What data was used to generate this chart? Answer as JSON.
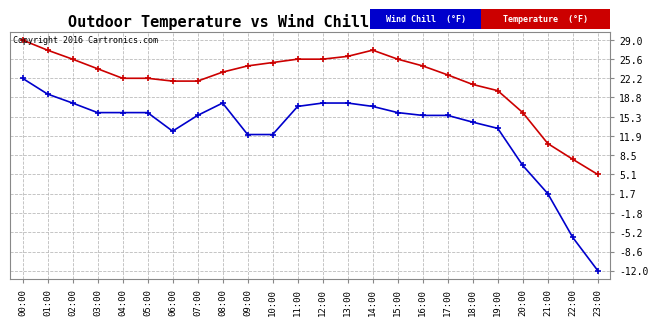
{
  "title": "Outdoor Temperature vs Wind Chill (24 Hours) 20160116",
  "copyright": "Copyright 2016 Cartronics.com",
  "x_labels": [
    "00:00",
    "01:00",
    "02:00",
    "03:00",
    "04:00",
    "05:00",
    "06:00",
    "07:00",
    "08:00",
    "09:00",
    "10:00",
    "11:00",
    "12:00",
    "13:00",
    "14:00",
    "15:00",
    "16:00",
    "17:00",
    "18:00",
    "19:00",
    "20:00",
    "21:00",
    "22:00",
    "23:00"
  ],
  "temperature": [
    29.0,
    27.2,
    25.6,
    23.9,
    22.2,
    22.2,
    21.7,
    21.7,
    23.3,
    24.4,
    25.0,
    25.6,
    25.6,
    26.1,
    27.2,
    25.6,
    24.4,
    22.8,
    21.1,
    20.0,
    16.1,
    10.6,
    7.8,
    5.1
  ],
  "wind_chill": [
    22.2,
    19.4,
    17.8,
    16.1,
    16.1,
    16.1,
    12.8,
    15.6,
    17.8,
    12.2,
    12.2,
    17.2,
    17.8,
    17.8,
    17.2,
    16.1,
    15.6,
    15.6,
    14.4,
    13.3,
    6.7,
    1.7,
    -6.1,
    -12.0
  ],
  "ylim": [
    -13.5,
    30.5
  ],
  "yticks": [
    29.0,
    25.6,
    22.2,
    18.8,
    15.3,
    11.9,
    8.5,
    5.1,
    1.7,
    -1.8,
    -5.2,
    -8.6,
    -12.0
  ],
  "temp_color": "#cc0000",
  "wind_chill_color": "#0000cc",
  "bg_color": "#ffffff",
  "plot_bg_color": "#ffffff",
  "grid_color": "#bbbbbb",
  "legend_wind_chill_bg": "#0000cc",
  "legend_temp_bg": "#cc0000",
  "legend_text_color": "#ffffff",
  "title_fontsize": 11,
  "marker": "+",
  "marker_size": 5,
  "marker_edge_width": 1.2,
  "line_width": 1.2
}
